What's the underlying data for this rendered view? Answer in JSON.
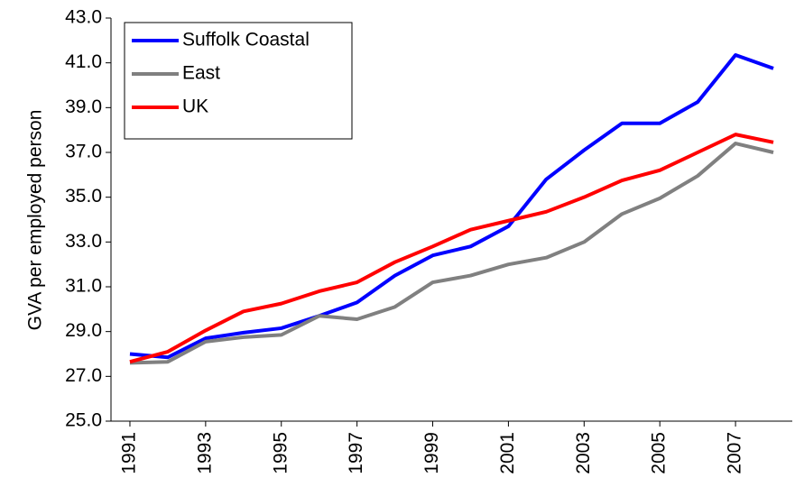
{
  "chart_data": {
    "type": "line",
    "y_label": "GVA per employed person",
    "x": [
      1991,
      1992,
      1993,
      1994,
      1995,
      1996,
      1997,
      1998,
      1999,
      2000,
      2001,
      2002,
      2003,
      2004,
      2005,
      2006,
      2007,
      2008
    ],
    "xlim": [
      1990.5,
      2008.5
    ],
    "xticks": [
      1991,
      1993,
      1995,
      1997,
      1999,
      2001,
      2003,
      2005,
      2007
    ],
    "ylim": [
      25,
      43
    ],
    "yticks": [
      {
        "value": 25,
        "label": "25.0"
      },
      {
        "value": 27,
        "label": "27.0"
      },
      {
        "value": 29,
        "label": "29.0"
      },
      {
        "value": 31,
        "label": "31.0"
      },
      {
        "value": 33,
        "label": "33.0"
      },
      {
        "value": 35,
        "label": "35.0"
      },
      {
        "value": 37,
        "label": "37.0"
      },
      {
        "value": 39,
        "label": "39.0"
      },
      {
        "value": 41,
        "label": "41.0"
      },
      {
        "value": 43,
        "label": "43.0"
      }
    ],
    "grid": false,
    "legend": "upper-left",
    "series": [
      {
        "name": "Suffolk Coastal",
        "color": "#0000ff",
        "values": [
          28.0,
          27.85,
          28.7,
          28.95,
          29.15,
          29.7,
          30.3,
          31.5,
          32.4,
          32.8,
          33.7,
          35.8,
          37.1,
          38.3,
          38.3,
          39.25,
          41.35,
          40.75
        ]
      },
      {
        "name": "East",
        "color": "#808080",
        "values": [
          27.6,
          27.65,
          28.55,
          28.75,
          28.85,
          29.7,
          29.55,
          30.1,
          31.2,
          31.5,
          32.0,
          32.3,
          33.0,
          34.25,
          34.95,
          35.95,
          37.4,
          37.0
        ]
      },
      {
        "name": "UK",
        "color": "#ff0000",
        "values": [
          27.65,
          28.1,
          29.05,
          29.9,
          30.25,
          30.8,
          31.2,
          32.1,
          32.8,
          33.55,
          33.95,
          34.35,
          35.0,
          35.75,
          36.2,
          37.0,
          37.8,
          37.45
        ]
      }
    ]
  }
}
